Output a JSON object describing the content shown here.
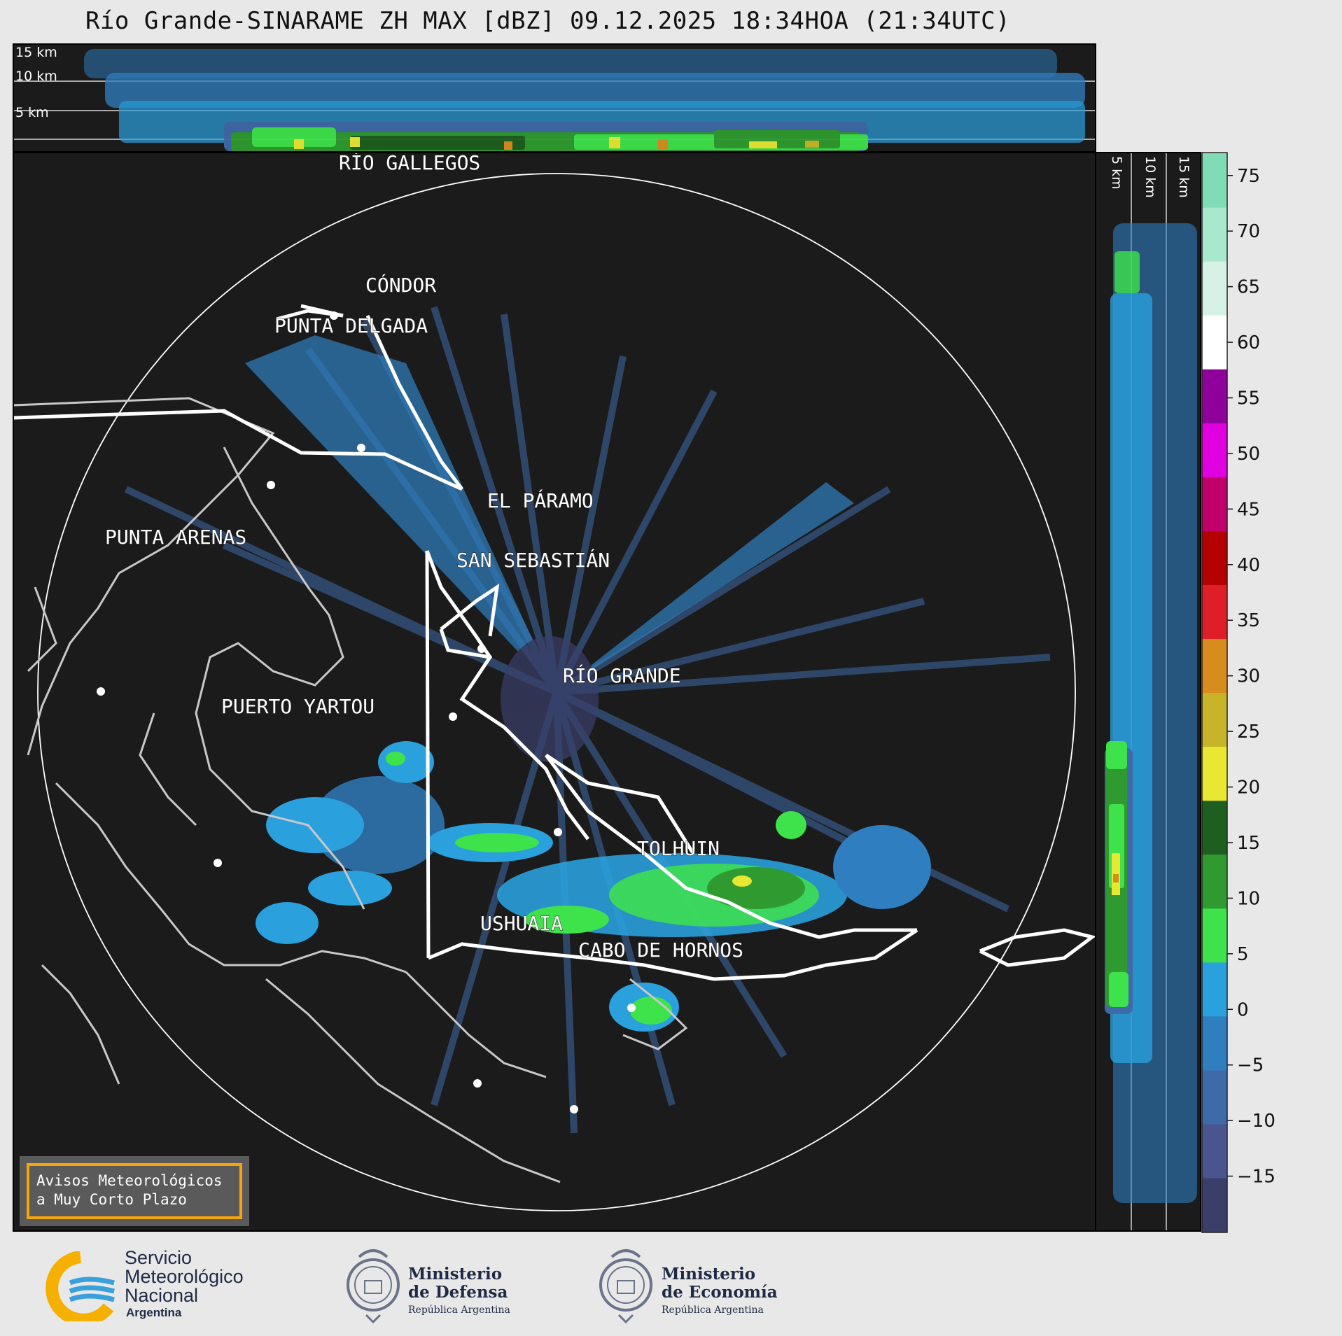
{
  "title": "Río Grande-SINARAME ZH MAX [dBZ] 09.12.2025 18:34HOA (21:34UTC)",
  "top_panel": {
    "altitudes": [
      "15 km",
      "10 km",
      "5 km"
    ]
  },
  "side_panel": {
    "altitudes": [
      "5 km",
      "10 km",
      "15 km"
    ]
  },
  "cities": [
    {
      "id": "rio-gallegos",
      "name": "RÍO GALLEGOS"
    },
    {
      "id": "condor",
      "name": "CÓNDOR"
    },
    {
      "id": "punta-delgada",
      "name": "PUNTA DELGADA"
    },
    {
      "id": "el-paramo",
      "name": "EL PÁRAMO"
    },
    {
      "id": "punta-arenas",
      "name": "PUNTA ARENAS"
    },
    {
      "id": "san-sebastian",
      "name": "SAN SEBASTIÁN"
    },
    {
      "id": "rio-grande",
      "name": "RÍO GRANDE"
    },
    {
      "id": "puerto-yartou",
      "name": "PUERTO YARTOU"
    },
    {
      "id": "tolhuin",
      "name": "TOLHUIN"
    },
    {
      "id": "ushuaia",
      "name": "USHUAIA"
    },
    {
      "id": "cabo-de-hornos",
      "name": "CABO DE HORNOS"
    }
  ],
  "notice": {
    "line1": "Avisos Meteorológicos",
    "line2": "a Muy Corto Plazo"
  },
  "colorbar": {
    "unit": "dBZ",
    "ticks": [
      "75",
      "70",
      "65",
      "60",
      "55",
      "50",
      "45",
      "40",
      "35",
      "30",
      "25",
      "20",
      "15",
      "10",
      "5",
      "0",
      "−5",
      "−10",
      "−15"
    ],
    "range": [
      -20,
      77
    ],
    "colors": [
      "#3a3f6a",
      "#4a5590",
      "#3e6aa8",
      "#2f7fc0",
      "#2aa0dc",
      "#3ee24a",
      "#2f9a2f",
      "#1e5e1e",
      "#e8e832",
      "#c8b428",
      "#d88c1e",
      "#e01e2a",
      "#b40000",
      "#c0006a",
      "#e000e0",
      "#90009a",
      "#ffffff",
      "#d6f2e6",
      "#a8e8cc",
      "#80dcb4"
    ]
  },
  "footer": {
    "smn": {
      "line1": "Servicio",
      "line2": "Meteorológico",
      "line3": "Nacional",
      "line4": "Argentina"
    },
    "defensa": {
      "line1": "Ministerio",
      "line2": "de Defensa",
      "line3": "República Argentina"
    },
    "economia": {
      "line1": "Ministerio",
      "line2": "de Economía",
      "line3": "República Argentina"
    }
  }
}
